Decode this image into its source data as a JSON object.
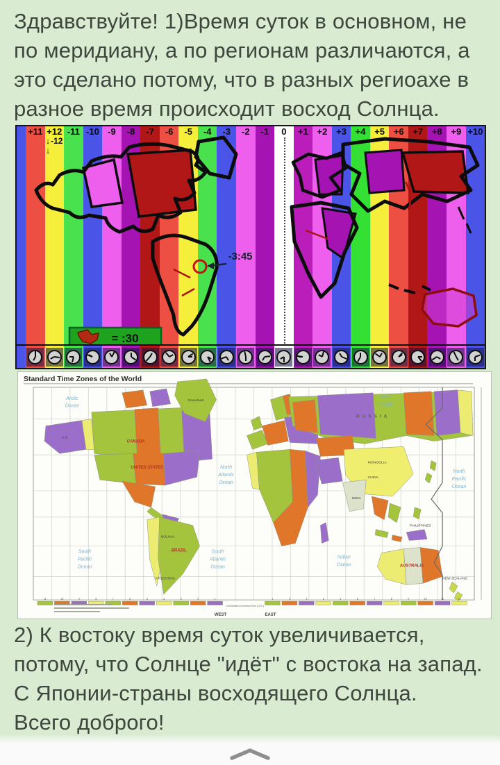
{
  "page": {
    "background": "#d9ecd1",
    "text_color": "#3e463e"
  },
  "answer": {
    "para1": "Здравствуйте! 1)Время суток в основном, не по меридиану, а по регионам различаются, а это сделано потому, что в разных региоахе в разное время происходит восход Солнца.",
    "para2": "2) К востоку время суток увеличивается, потому, что Солнце \"идёт\" с востока на запад. С Японии-страны восходящего Солнца.",
    "para3": "Всего доброго!"
  },
  "map1": {
    "zones": [
      {
        "label": "+11",
        "color": "#ee4f43"
      },
      {
        "label": "+12",
        "color": "#f5ee3a"
      },
      {
        "label": "-11",
        "color": "#49e14d"
      },
      {
        "label": "-10",
        "color": "#4a55e8"
      },
      {
        "label": "-9",
        "color": "#ee5fee"
      },
      {
        "label": "-8",
        "color": "#a513b3"
      },
      {
        "label": "-7",
        "color": "#b21717"
      },
      {
        "label": "-6",
        "color": "#ee4f43"
      },
      {
        "label": "-5",
        "color": "#f5ee3a"
      },
      {
        "label": "-4",
        "color": "#49e14d"
      },
      {
        "label": "-3",
        "color": "#4a55e8"
      },
      {
        "label": "-2",
        "color": "#ee5fee"
      },
      {
        "label": "-1",
        "color": "#a513b3"
      },
      {
        "label": "0",
        "color": "#ffffff"
      },
      {
        "label": "+1",
        "color": "#bb1dbb"
      },
      {
        "label": "+2",
        "color": "#ee5fee"
      },
      {
        "label": "+3",
        "color": "#4a55e8"
      },
      {
        "label": "+4",
        "color": "#35e035"
      },
      {
        "label": "+5",
        "color": "#f5ee3a"
      },
      {
        "label": "+6",
        "color": "#ee4f43"
      },
      {
        "label": "+7",
        "color": "#b21717"
      },
      {
        "label": "+8",
        "color": "#a513b3"
      },
      {
        "label": "+9",
        "color": "#ee5fee"
      },
      {
        "label": "+10",
        "color": "#4a55e8"
      }
    ],
    "lead_color": "#4a55e8",
    "sub_label": "-12",
    "annotation_offset": "-3:45",
    "legend_text": "= :30"
  },
  "map2": {
    "title": "Standard Time Zones of the World",
    "oceans": {
      "arctic_w": "Arctic Ocean",
      "arctic_e": "Arctic Ocean",
      "n_pacific": "North Pacific Ocean",
      "n_atlantic": "North Atlantic Ocean",
      "s_pacific": "South Pacific Ocean",
      "s_atlantic": "South Atlantic Ocean",
      "indian": "Indian Ocean"
    },
    "countries": {
      "us_alaska": "U.S.",
      "canada": "CANADA",
      "usa": "UNITED STATES",
      "greenland": "Greenland",
      "russia": "RUSSIA",
      "mongolia": "MONGOLIA",
      "china": "CHINA",
      "india": "INDIA",
      "philippines": "PHILIPPINES",
      "brazil": "BRAZIL",
      "bolivia": "BOLIVIA",
      "argentina": "ARGENTINA",
      "australia": "AUSTRALIA",
      "new_zealand": "NEW ZEALAND"
    },
    "compass": {
      "west": "WEST",
      "east": "EAST"
    },
    "note": "Coordinated Universal Time (UTC)",
    "scale_west": [
      "11",
      "10",
      "9",
      "8",
      "7",
      "6",
      "5",
      "4",
      "3",
      "2",
      "1"
    ],
    "scale_east": [
      "1",
      "2",
      "3",
      "4",
      "5",
      "6",
      "7",
      "8",
      "9",
      "10",
      "11",
      "12"
    ]
  }
}
